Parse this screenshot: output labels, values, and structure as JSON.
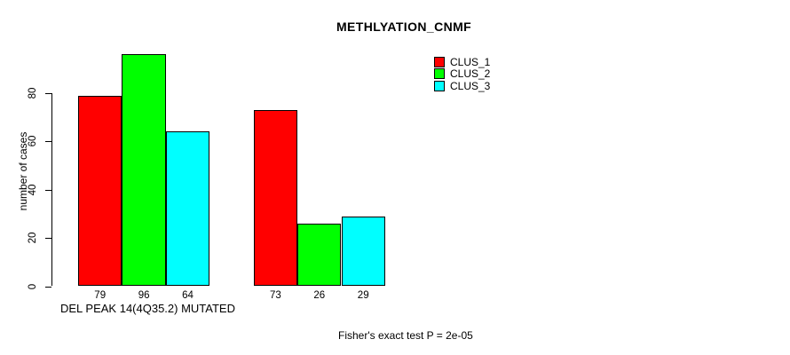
{
  "chart_data": {
    "type": "bar",
    "title": "METHLYATION_CNMF",
    "ylabel": "number of cases",
    "xlabel": "DEL PEAK 14(4Q35.2) MUTATED",
    "footer": "Fisher's exact test P = 2e-05",
    "ylim": [
      0,
      80
    ],
    "yticks": [
      0,
      20,
      40,
      60,
      80
    ],
    "grid": false,
    "legend_position": "top-right",
    "legend": [
      {
        "label": "CLUS_1",
        "color": "#FF0000"
      },
      {
        "label": "CLUS_2",
        "color": "#00FF00"
      },
      {
        "label": "CLUS_3",
        "color": "#00FFFF"
      }
    ],
    "series_names": [
      "CLUS_1",
      "CLUS_2",
      "CLUS_3"
    ],
    "groups": [
      {
        "name": "DEL PEAK 14(4Q35.2) MUTATED",
        "values": [
          79,
          96,
          64
        ]
      },
      {
        "name": "",
        "values": [
          73,
          26,
          29
        ]
      }
    ],
    "bar_value_labels": [
      79,
      96,
      64,
      73,
      26,
      29
    ]
  }
}
